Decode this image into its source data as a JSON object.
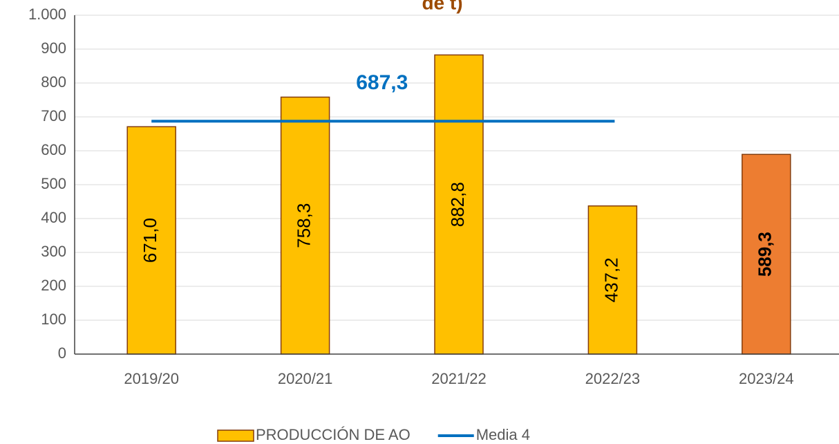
{
  "chart_data": {
    "type": "bar",
    "title": "de t)",
    "categories": [
      "2019/20",
      "2020/21",
      "2021/22",
      "2022/23",
      "2023/24"
    ],
    "series": [
      {
        "name": "PRODUCCIÓN DE AO",
        "type": "bar",
        "color": "#FFC000",
        "colors": [
          "#FFC000",
          "#FFC000",
          "#FFC000",
          "#FFC000",
          "#ED7D31"
        ],
        "values": [
          671.0,
          758.3,
          882.8,
          437.2,
          589.3
        ],
        "value_labels": [
          "671,0",
          "758,3",
          "882,8",
          "437,2",
          "589,3"
        ]
      },
      {
        "name": "Media 4",
        "type": "line",
        "color": "#0070C0",
        "values": [
          687.3,
          687.3,
          687.3,
          687.3,
          null
        ],
        "value_labels": [
          null,
          "687,3",
          null,
          null,
          null
        ]
      }
    ],
    "ylim": [
      0,
      1000
    ],
    "yticks": [
      0,
      100,
      200,
      300,
      400,
      500,
      600,
      700,
      800,
      900,
      {
        "value": 1000,
        "label": "1.000"
      }
    ],
    "grid": true,
    "legend": "bottom"
  }
}
